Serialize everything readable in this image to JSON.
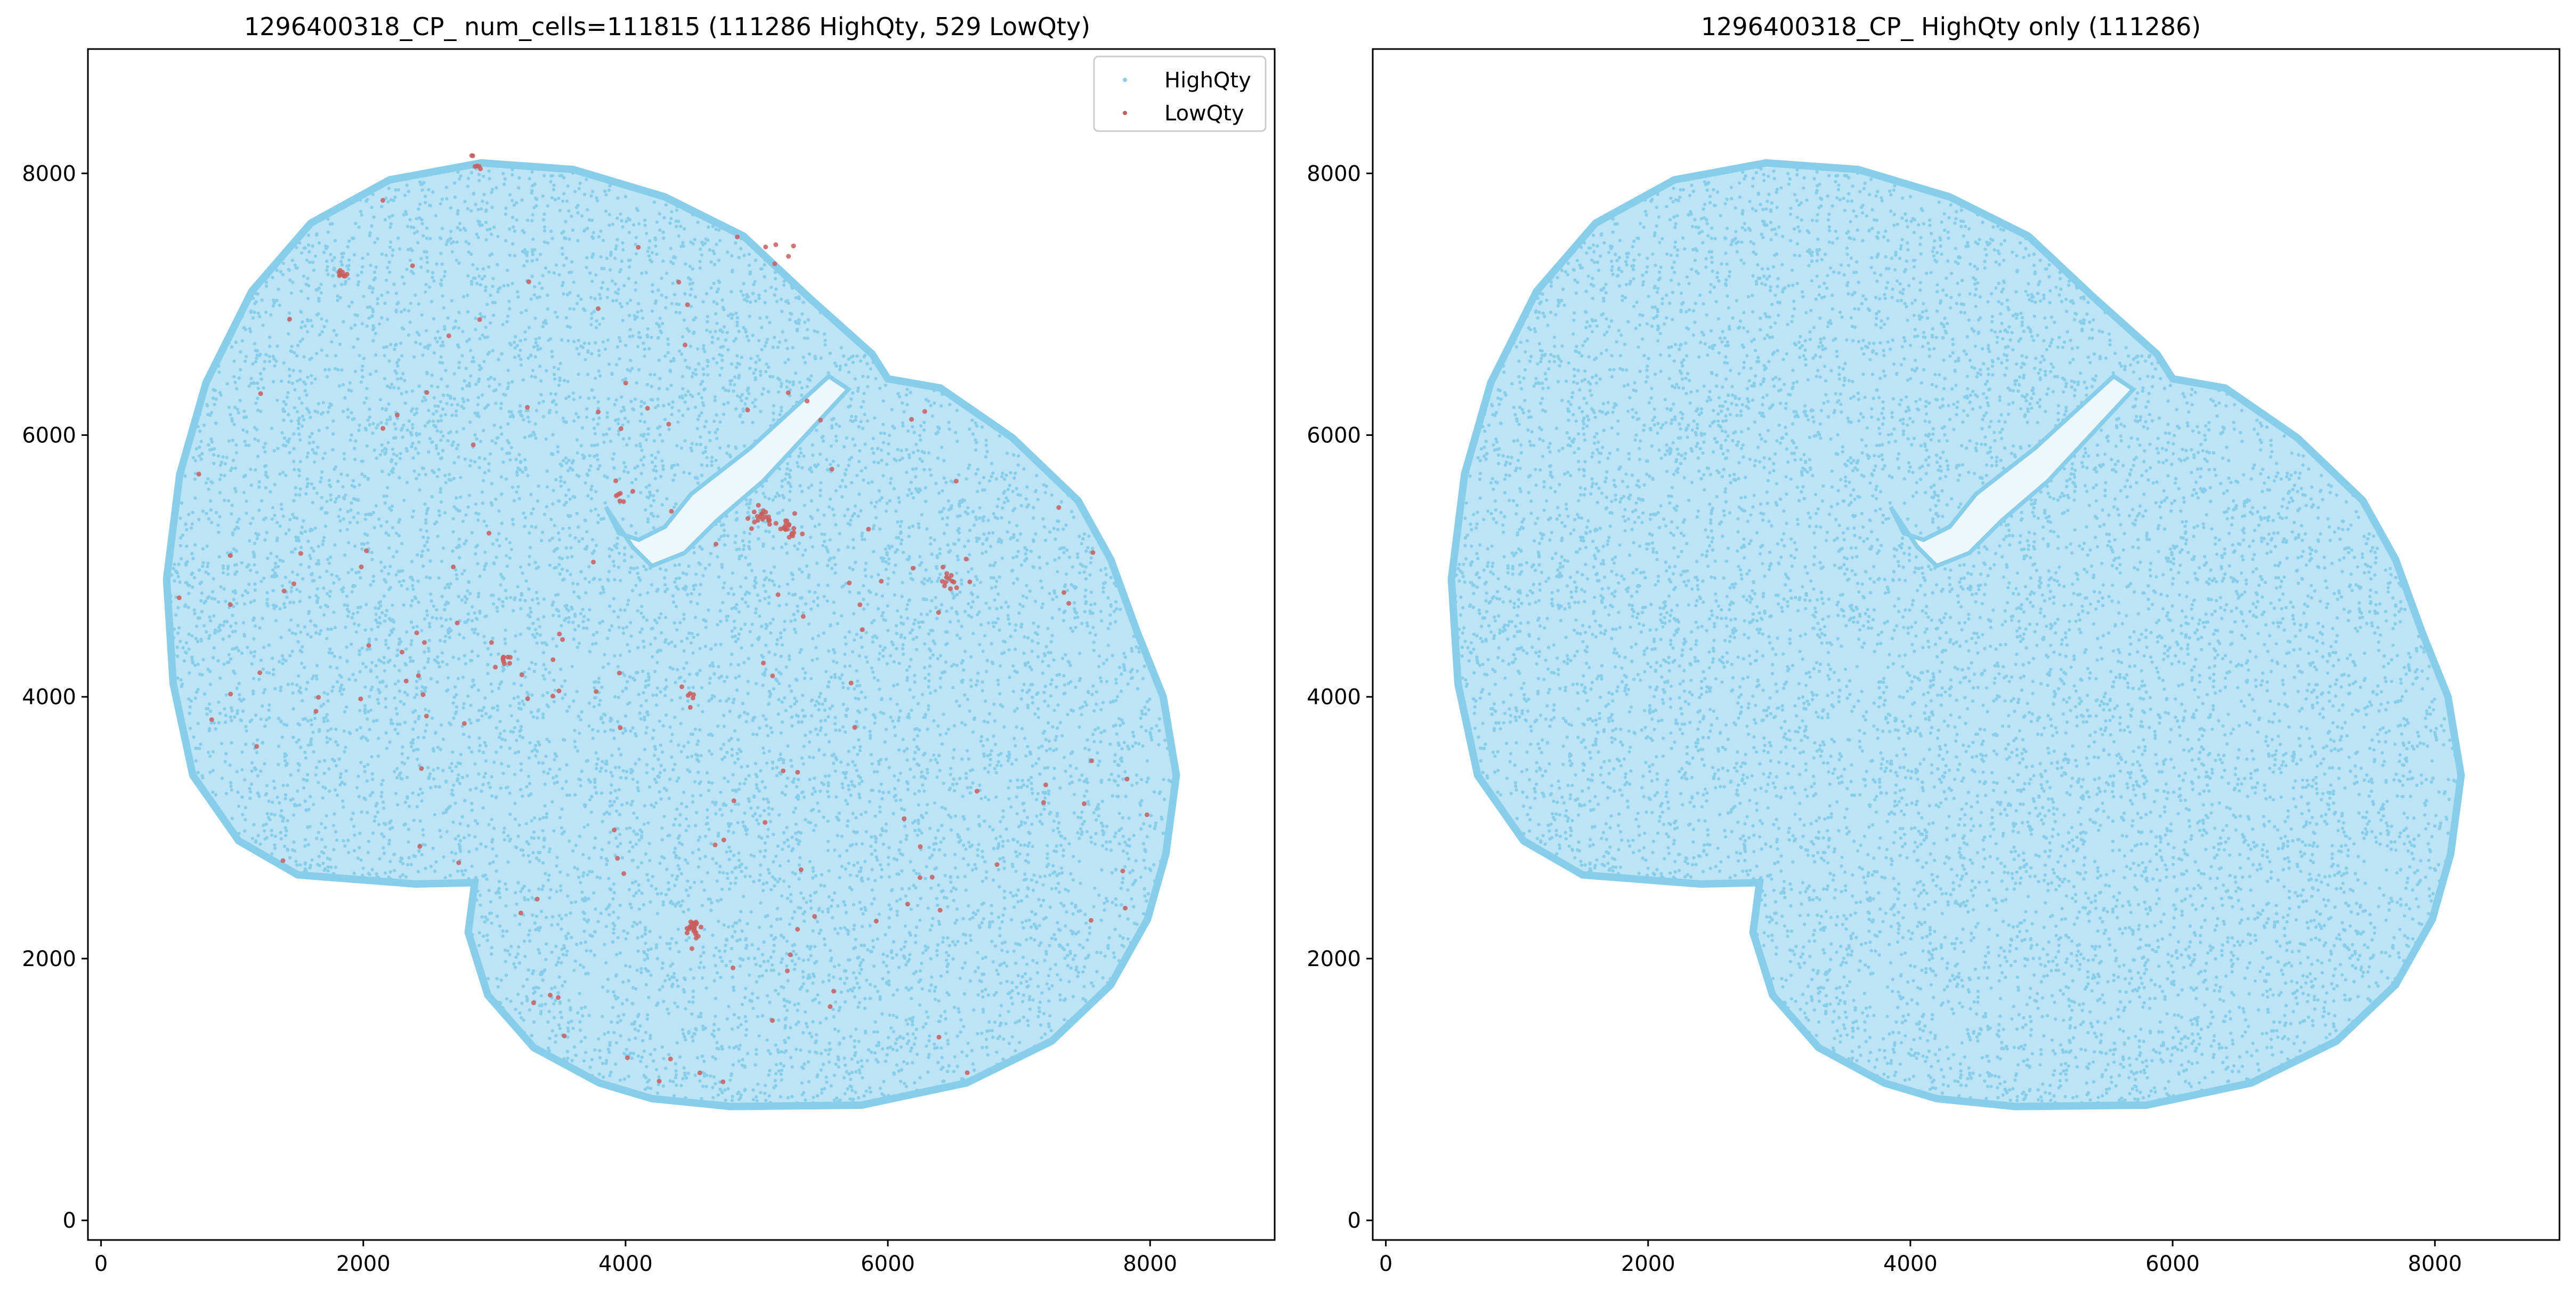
{
  "colors": {
    "highqty": "#87CEEB",
    "lowqty": "#CD5C5C",
    "axes": "#000000",
    "background": "#ffffff"
  },
  "chart_data": [
    {
      "type": "scatter",
      "title": "1296400318_CP_ num_cells=111815 (111286 HighQty, 529 LowQty)",
      "xlabel": "",
      "ylabel": "",
      "xlim": [
        -100,
        8950
      ],
      "ylim": [
        -150,
        8950
      ],
      "x_ticks": [
        0,
        2000,
        4000,
        6000,
        8000
      ],
      "y_ticks": [
        0,
        2000,
        4000,
        6000,
        8000
      ],
      "x_tick_labels": [
        "0",
        "2000",
        "4000",
        "6000",
        "8000"
      ],
      "y_tick_labels": [
        "0",
        "2000",
        "4000",
        "6000",
        "8000"
      ],
      "grid": false,
      "legend": {
        "placement": "top-right",
        "entries": [
          "HighQty",
          "LowQty"
        ]
      },
      "series": [
        {
          "name": "HighQty",
          "color": "#87CEEB",
          "count": 111286,
          "outline": [
            [
              2900,
              8080
            ],
            [
              3600,
              8030
            ],
            [
              4300,
              7820
            ],
            [
              4900,
              7520
            ],
            [
              5400,
              7050
            ],
            [
              5880,
              6620
            ],
            [
              6000,
              6430
            ],
            [
              6400,
              6360
            ],
            [
              6950,
              5980
            ],
            [
              7450,
              5500
            ],
            [
              7700,
              5050
            ],
            [
              7900,
              4500
            ],
            [
              8100,
              4000
            ],
            [
              8200,
              3400
            ],
            [
              8120,
              2800
            ],
            [
              7980,
              2300
            ],
            [
              7700,
              1800
            ],
            [
              7250,
              1370
            ],
            [
              6600,
              1050
            ],
            [
              5800,
              880
            ],
            [
              4800,
              870
            ],
            [
              4200,
              930
            ],
            [
              3800,
              1050
            ],
            [
              3300,
              1320
            ],
            [
              2950,
              1720
            ],
            [
              2800,
              2200
            ],
            [
              2850,
              2580
            ],
            [
              2400,
              2570
            ],
            [
              1500,
              2640
            ],
            [
              1050,
              2900
            ],
            [
              700,
              3400
            ],
            [
              550,
              4100
            ],
            [
              500,
              4900
            ],
            [
              600,
              5700
            ],
            [
              800,
              6400
            ],
            [
              1150,
              7100
            ],
            [
              1600,
              7620
            ],
            [
              2200,
              7950
            ],
            [
              2900,
              8080
            ]
          ],
          "notes": []
        },
        {
          "name": "LowQty",
          "color": "#CD5C5C",
          "count": 529,
          "clusters": [
            {
              "x": 5050,
              "y": 5370,
              "spread": 90,
              "n": 20
            },
            {
              "x": 5250,
              "y": 5280,
              "spread": 80,
              "n": 18
            },
            {
              "x": 4520,
              "y": 2230,
              "spread": 70,
              "n": 20
            },
            {
              "x": 6450,
              "y": 4890,
              "spread": 70,
              "n": 12
            },
            {
              "x": 1840,
              "y": 7230,
              "spread": 50,
              "n": 9
            },
            {
              "x": 3070,
              "y": 4280,
              "spread": 60,
              "n": 8
            },
            {
              "x": 3960,
              "y": 5550,
              "spread": 60,
              "n": 7
            },
            {
              "x": 4500,
              "y": 4020,
              "spread": 80,
              "n": 5
            },
            {
              "x": 2850,
              "y": 8090,
              "spread": 80,
              "n": 6
            },
            {
              "x": 5200,
              "y": 7400,
              "spread": 120,
              "n": 5
            }
          ]
        }
      ]
    },
    {
      "type": "scatter",
      "title": "1296400318_CP_ HighQty only (111286)",
      "xlabel": "",
      "ylabel": "",
      "xlim": [
        -100,
        8950
      ],
      "ylim": [
        -150,
        8950
      ],
      "x_ticks": [
        0,
        2000,
        4000,
        6000,
        8000
      ],
      "y_ticks": [
        0,
        2000,
        4000,
        6000,
        8000
      ],
      "x_tick_labels": [
        "0",
        "2000",
        "4000",
        "6000",
        "8000"
      ],
      "y_tick_labels": [
        "0",
        "2000",
        "4000",
        "6000",
        "8000"
      ],
      "grid": false,
      "series": [
        {
          "name": "HighQty",
          "color": "#87CEEB",
          "count": 111286
        }
      ]
    }
  ]
}
